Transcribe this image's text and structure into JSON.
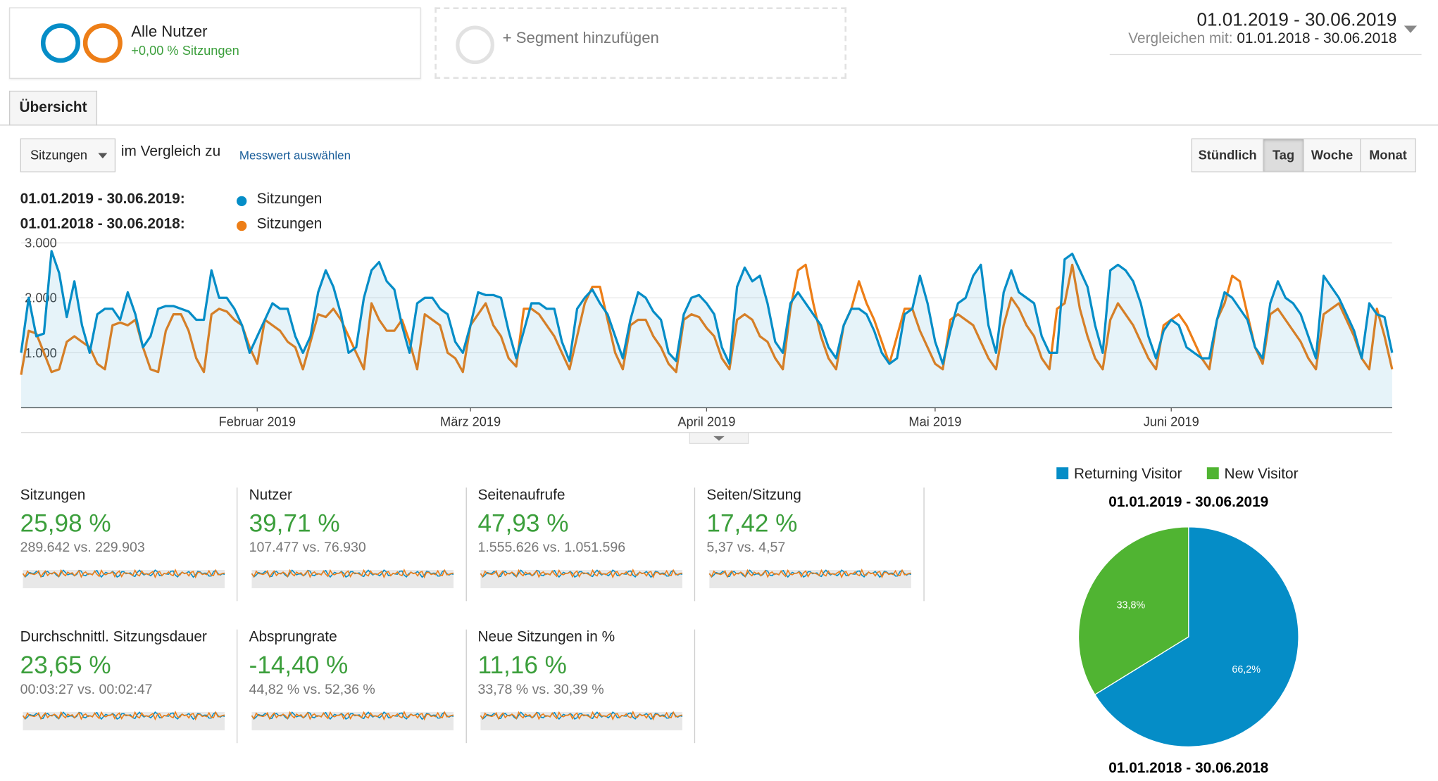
{
  "segments": [
    {
      "name": "Alle Nutzer",
      "change": "+0,00 % Sitzungen"
    }
  ],
  "add_segment": "+ Segment hinzufügen",
  "date_range": {
    "current": "01.01.2019 - 30.06.2019",
    "compare_label": "Vergleichen mit:",
    "compare": "01.01.2018 - 30.06.2018"
  },
  "tab": "Übersicht",
  "controls": {
    "metric": "Sitzungen",
    "compare_text": "im Vergleich zu",
    "select_metric": "Messwert auswählen",
    "granularity": [
      "Stündlich",
      "Tag",
      "Woche",
      "Monat"
    ],
    "active_granularity": 1
  },
  "chart_data": [
    {
      "type": "line",
      "xlim": [
        0,
        180
      ],
      "xticks": [
        {
          "value": 31,
          "label": "Februar 2019"
        },
        {
          "value": 59,
          "label": "März 2019"
        },
        {
          "value": 90,
          "label": "April 2019"
        },
        {
          "value": 120,
          "label": "Mai 2019"
        },
        {
          "value": 151,
          "label": "Juni 2019"
        }
      ],
      "ylim": [
        0,
        3000
      ],
      "yticks": [
        {
          "value": 1000,
          "label": "1.000"
        },
        {
          "value": 2000,
          "label": "2.000"
        },
        {
          "value": 3000,
          "label": "3.000"
        }
      ],
      "grid": true,
      "series": [
        {
          "name": "Sitzungen",
          "period": "01.01.2019 - 30.06.2019:",
          "color": "#058dc7",
          "area": true,
          "values": [
            1000,
            2000,
            1300,
            1350,
            2850,
            2450,
            1650,
            2300,
            1500,
            1000,
            1700,
            1800,
            1800,
            1600,
            2100,
            1700,
            1100,
            1300,
            1800,
            1850,
            1850,
            1800,
            1750,
            1600,
            1600,
            2500,
            2000,
            2000,
            1800,
            1500,
            1000,
            1300,
            1600,
            1900,
            1800,
            1800,
            1300,
            1000,
            1300,
            2100,
            2500,
            2200,
            1700,
            1000,
            1100,
            2000,
            2500,
            2650,
            2300,
            2150,
            1500,
            1000,
            1900,
            2000,
            2000,
            1800,
            1700,
            1200,
            1000,
            1500,
            2100,
            2050,
            2050,
            2000,
            1400,
            900,
            1400,
            1900,
            1900,
            1800,
            1800,
            1200,
            850,
            1800,
            2000,
            2150,
            1900,
            1700,
            1300,
            900,
            1600,
            2100,
            2000,
            1750,
            1600,
            1000,
            850,
            1700,
            2000,
            2050,
            1900,
            1700,
            1100,
            800,
            2200,
            2550,
            2300,
            2400,
            1900,
            1200,
            1000,
            1900,
            2100,
            1900,
            1700,
            1500,
            1100,
            900,
            1500,
            1800,
            1800,
            1700,
            1400,
            1000,
            800,
            900,
            1700,
            1800,
            2400,
            1900,
            1200,
            800,
            1400,
            1900,
            2000,
            2400,
            2600,
            1500,
            1000,
            2100,
            2500,
            2100,
            2000,
            1900,
            1300,
            1000,
            1000,
            2700,
            2800,
            2500,
            2200,
            1500,
            1000,
            2500,
            2600,
            2500,
            2300,
            1900,
            1300,
            900,
            1400,
            1600,
            1500,
            1100,
            1000,
            900,
            900,
            1600,
            2100,
            2000,
            1800,
            1600,
            1100,
            900,
            1900,
            2300,
            2000,
            1900,
            1700,
            1300,
            900,
            2400,
            2200,
            2000,
            1700,
            1400,
            900,
            1900,
            1700,
            1650,
            1000
          ]
        },
        {
          "name": "Sitzungen",
          "period": "01.01.2018 - 30.06.2018:",
          "color": "#ed7e17",
          "area": false,
          "values": [
            600,
            1400,
            1350,
            1000,
            650,
            700,
            1200,
            1300,
            1200,
            1100,
            800,
            700,
            1500,
            1550,
            1500,
            1600,
            1100,
            700,
            650,
            1400,
            1700,
            1700,
            1400,
            900,
            650,
            1700,
            1800,
            1750,
            1600,
            1500,
            1100,
            800,
            1600,
            1500,
            1400,
            1200,
            1100,
            700,
            1200,
            1700,
            1650,
            1800,
            1600,
            1300,
            1000,
            700,
            1900,
            1600,
            1400,
            1400,
            1600,
            1200,
            700,
            1700,
            1600,
            1500,
            1000,
            900,
            650,
            1500,
            1700,
            1900,
            1500,
            1300,
            900,
            750,
            1800,
            1800,
            1700,
            1500,
            1300,
            1000,
            700,
            1300,
            1900,
            2200,
            2200,
            1600,
            1000,
            700,
            1500,
            1600,
            1600,
            1300,
            1100,
            800,
            650,
            1600,
            1700,
            1650,
            1450,
            1300,
            900,
            700,
            1600,
            1700,
            1600,
            1300,
            1200,
            900,
            700,
            1800,
            2500,
            2600,
            1900,
            1300,
            900,
            700,
            1500,
            1800,
            2300,
            1900,
            1600,
            1200,
            800,
            1300,
            1800,
            1800,
            1400,
            1100,
            800,
            700,
            1600,
            1700,
            1600,
            1500,
            1200,
            900,
            700,
            1500,
            2000,
            1800,
            1500,
            1300,
            900,
            700,
            1800,
            1900,
            2600,
            1800,
            1300,
            900,
            700,
            1600,
            1900,
            1700,
            1500,
            1200,
            900,
            700,
            1500,
            1600,
            1700,
            1500,
            1200,
            900,
            700,
            1600,
            1900,
            2400,
            2300,
            1700,
            1100,
            800,
            1700,
            1800,
            1600,
            1400,
            1200,
            900,
            700,
            1700,
            1800,
            1900,
            1600,
            1300,
            900,
            700,
            1800,
            1300,
            700
          ]
        }
      ]
    },
    {
      "type": "pie",
      "title": "01.01.2019 - 30.06.2019",
      "subtitle": "01.01.2018 - 30.06.2018",
      "categories": [
        "Returning Visitor",
        "New Visitor"
      ],
      "values": [
        66.2,
        33.8
      ],
      "value_labels": [
        "66,2%",
        "33,8%"
      ],
      "colors": [
        "#058dc7",
        "#50b432"
      ]
    }
  ],
  "metrics": [
    {
      "label": "Sitzungen",
      "change": "25,98 %",
      "comparison": "289.642 vs. 229.903"
    },
    {
      "label": "Nutzer",
      "change": "39,71 %",
      "comparison": "107.477 vs. 76.930"
    },
    {
      "label": "Seitenaufrufe",
      "change": "47,93 %",
      "comparison": "1.555.626 vs. 1.051.596"
    },
    {
      "label": "Seiten/Sitzung",
      "change": "17,42 %",
      "comparison": "5,37 vs. 4,57"
    },
    {
      "label": "Durchschnittl. Sitzungsdauer",
      "change": "23,65 %",
      "comparison": "00:03:27 vs. 00:02:47"
    },
    {
      "label": "Absprungrate",
      "change": "-14,40 %",
      "comparison": "44,82 % vs. 52,36 %"
    },
    {
      "label": "Neue Sitzungen in %",
      "change": "11,16 %",
      "comparison": "33,78 % vs. 30,39 %"
    }
  ]
}
